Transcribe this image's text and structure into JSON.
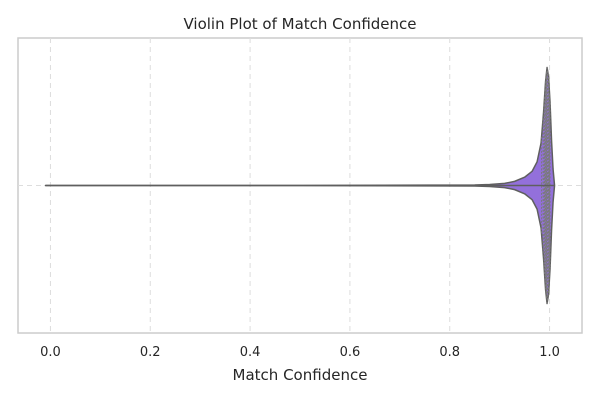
{
  "chart_data": {
    "type": "violin",
    "orientation": "horizontal",
    "title": "Violin Plot of Match Confidence",
    "xlabel": "Match Confidence",
    "ylabel": "",
    "xlim": [
      -0.065,
      1.065
    ],
    "xticks": [
      0.0,
      0.2,
      0.4,
      0.6,
      0.8,
      1.0
    ],
    "xtick_labels": [
      "0.0",
      "0.2",
      "0.4",
      "0.6",
      "0.8",
      "1.0"
    ],
    "grid": true,
    "colors": {
      "violin_fill": "#9370DB",
      "violin_edge": "#5F5F5F",
      "grid": "#DDDDDD",
      "frame": "#CCCCCC",
      "text": "#262626",
      "stick": "#7A7A7A"
    },
    "inner": "stick",
    "data_range": [
      -0.01,
      1.01
    ],
    "density": [
      {
        "x": -0.01,
        "w": 0.0
      },
      {
        "x": 0.5,
        "w": 0.0
      },
      {
        "x": 0.85,
        "w": 0.004
      },
      {
        "x": 0.88,
        "w": 0.008
      },
      {
        "x": 0.91,
        "w": 0.018
      },
      {
        "x": 0.93,
        "w": 0.035
      },
      {
        "x": 0.95,
        "w": 0.07
      },
      {
        "x": 0.965,
        "w": 0.12
      },
      {
        "x": 0.975,
        "w": 0.2
      },
      {
        "x": 0.983,
        "w": 0.36
      },
      {
        "x": 0.988,
        "w": 0.62
      },
      {
        "x": 0.992,
        "w": 0.88
      },
      {
        "x": 0.995,
        "w": 1.0
      },
      {
        "x": 0.998,
        "w": 0.92
      },
      {
        "x": 1.001,
        "w": 0.7
      },
      {
        "x": 1.004,
        "w": 0.38
      },
      {
        "x": 1.007,
        "w": 0.14
      },
      {
        "x": 1.01,
        "w": 0.0
      }
    ],
    "observations": [
      0.984,
      0.987,
      0.989,
      0.99,
      0.991,
      0.992,
      0.993,
      0.994,
      0.995,
      0.996,
      0.997,
      0.998,
      0.999,
      1.0,
      1.001
    ]
  }
}
